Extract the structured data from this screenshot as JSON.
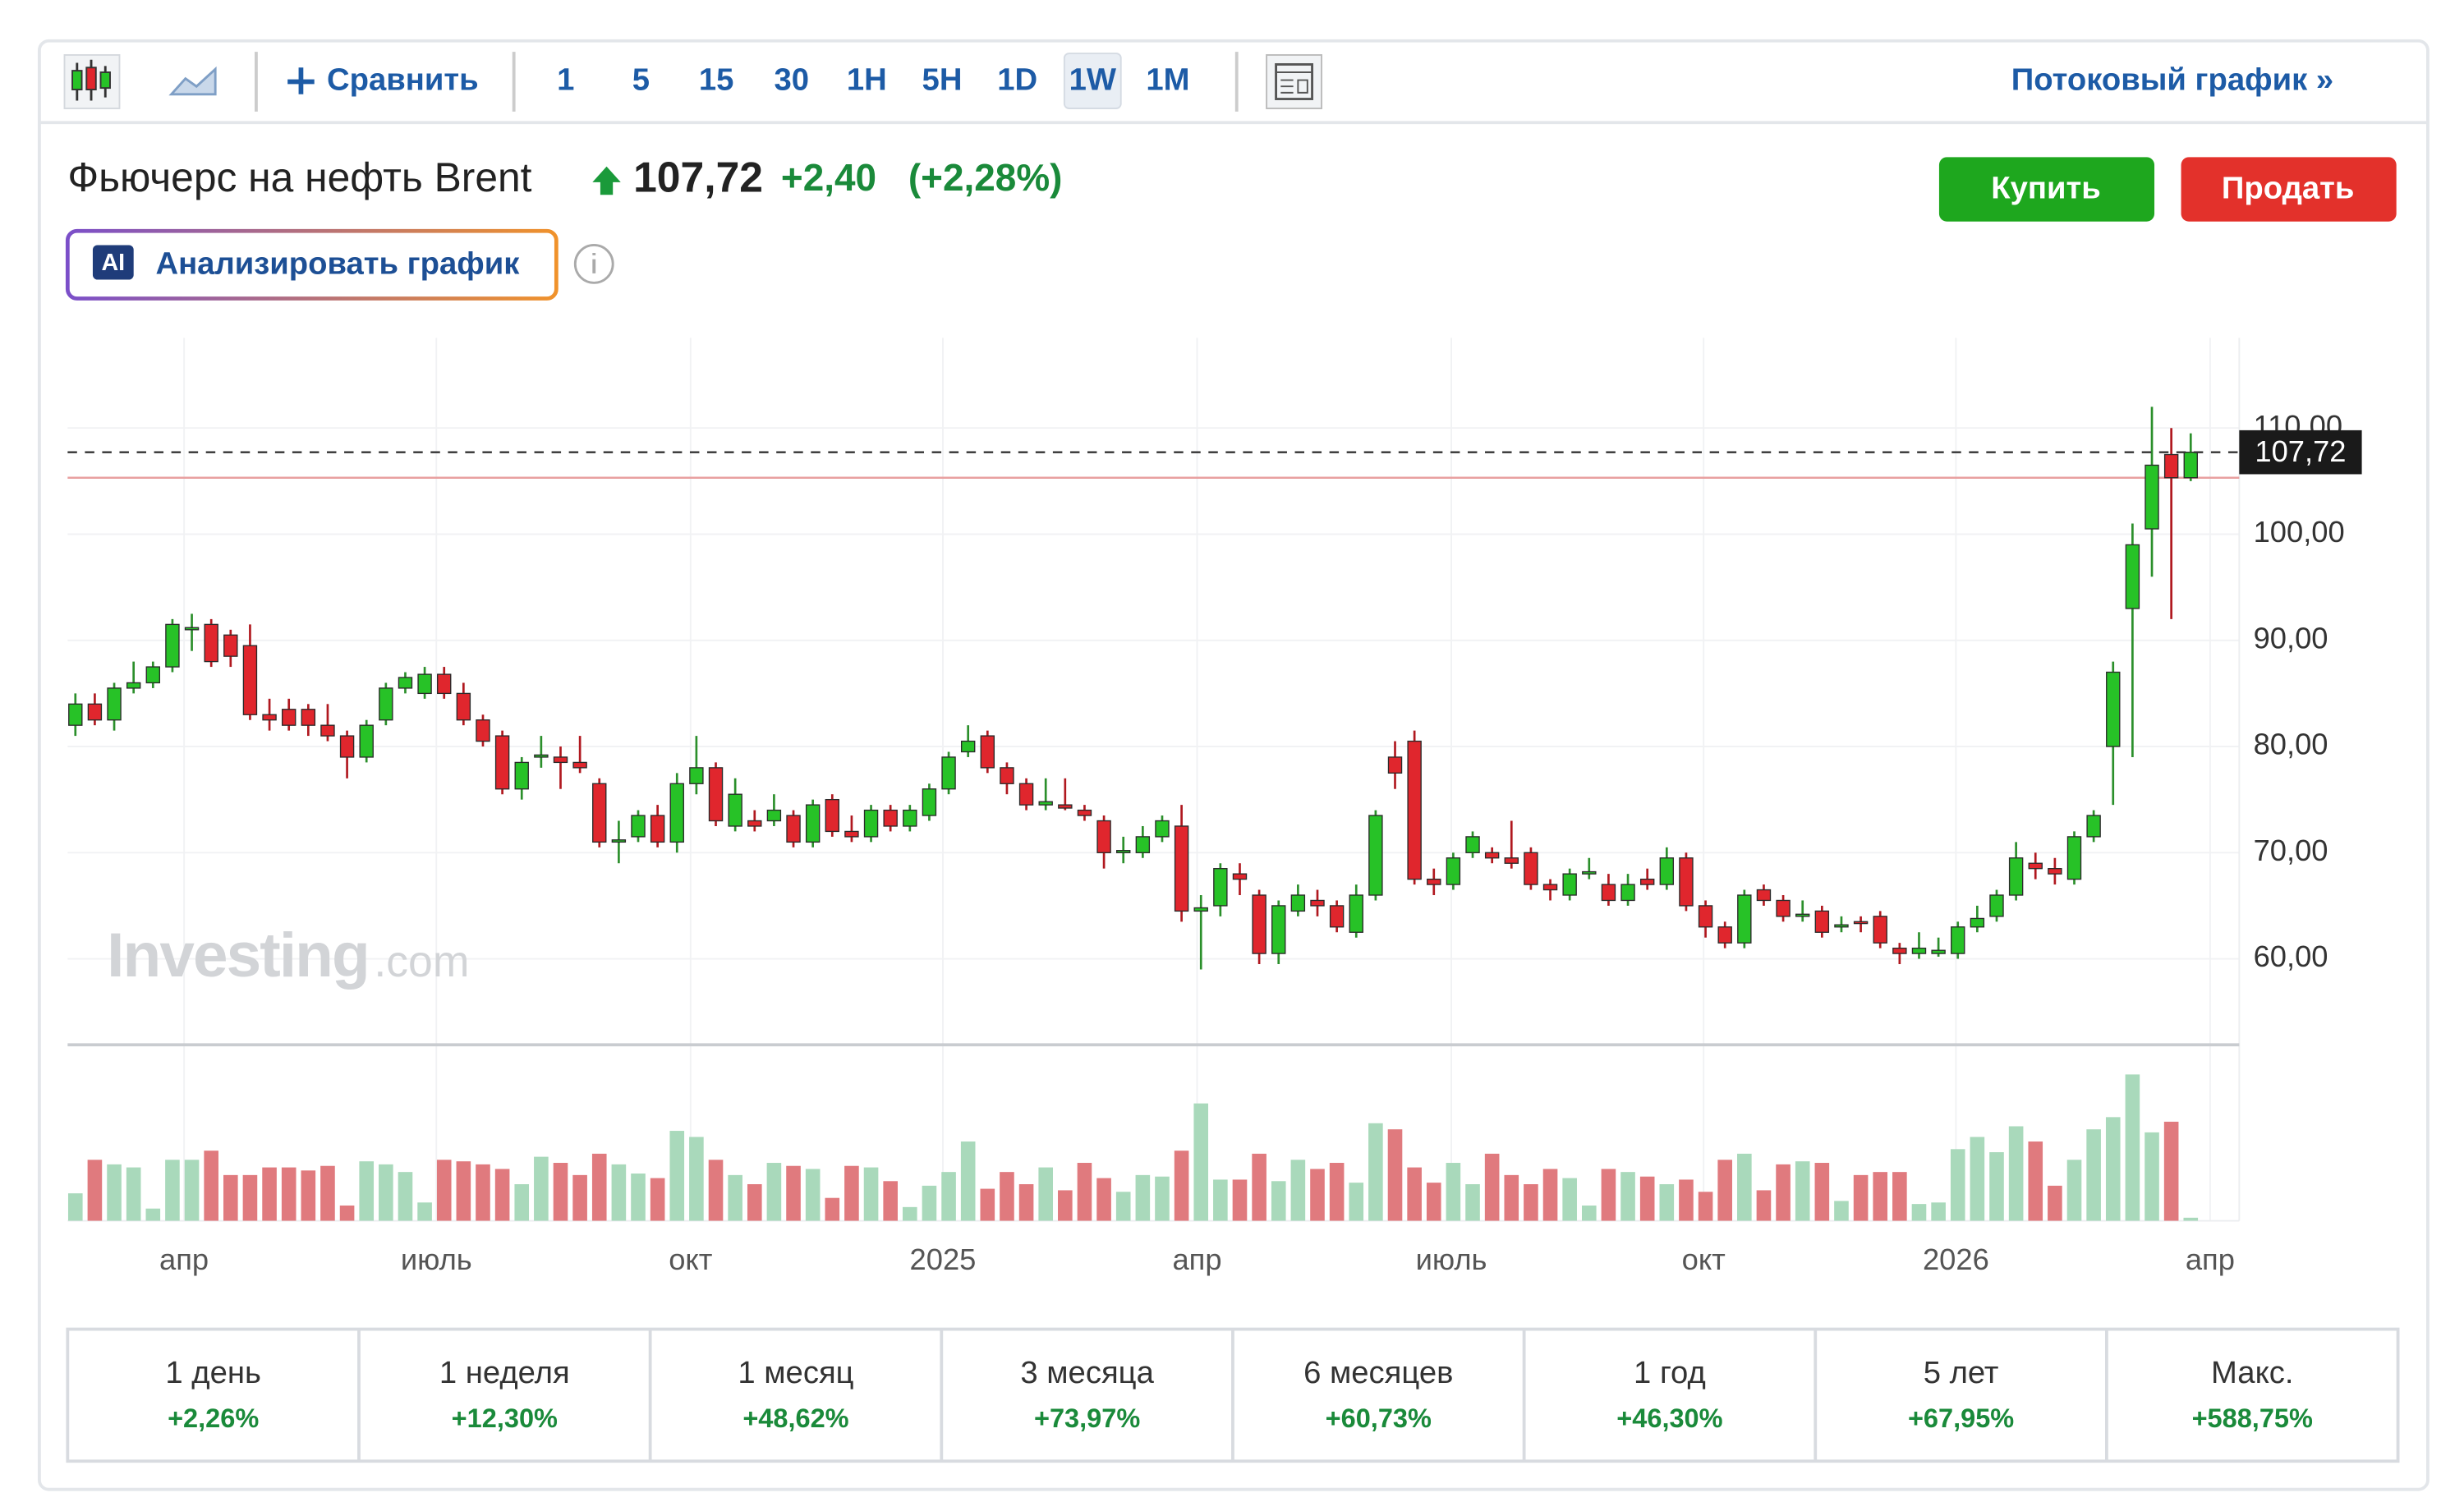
{
  "toolbar": {
    "compare": "Сравнить",
    "intervals": [
      "1",
      "5",
      "15",
      "30",
      "1H",
      "5H",
      "1D",
      "1W",
      "1M"
    ],
    "selected_interval": "1W",
    "stream": "Потоковый график »"
  },
  "header": {
    "title": "Фьючерс на нефть Brent",
    "price": "107,72",
    "change": "+2,40",
    "change_pct": "(+2,28%)",
    "buy": "Купить",
    "sell": "Продать",
    "analyze": "Анализировать график",
    "ai_badge": "AI"
  },
  "watermark": {
    "brand": "Investing",
    "domain": ".com"
  },
  "chart_data": {
    "type": "candlestick",
    "ylim": [
      51.9,
      118.5
    ],
    "yticks": [
      {
        "value": 60,
        "label": "60,00"
      },
      {
        "value": 70,
        "label": "70,00"
      },
      {
        "value": 80,
        "label": "80,00"
      },
      {
        "value": 90,
        "label": "90,00"
      },
      {
        "value": 100,
        "label": "100,00"
      },
      {
        "value": 110,
        "label": "110,00"
      }
    ],
    "xlim": [
      -0.4,
      111.5
    ],
    "xticks": [
      {
        "value": 5.6,
        "label": "апр"
      },
      {
        "value": 18.6,
        "label": "июль"
      },
      {
        "value": 31.7,
        "label": "окт"
      },
      {
        "value": 44.7,
        "label": "2025"
      },
      {
        "value": 57.8,
        "label": "апр"
      },
      {
        "value": 70.9,
        "label": "июль"
      },
      {
        "value": 83.9,
        "label": "окт"
      },
      {
        "value": 96.9,
        "label": "2026"
      },
      {
        "value": 110,
        "label": "апр"
      }
    ],
    "last": {
      "value": 107.72,
      "label": "107,72"
    },
    "prev_close": 105.32,
    "up_color": "#27c227",
    "down_color": "#e0262d",
    "volume_up_color": "#a9d9bb",
    "volume_down_color": "#e07a7e",
    "grid": true,
    "vlim": [
      0,
      100
    ],
    "candles": [
      [
        82,
        85,
        81,
        84
      ],
      [
        84,
        85,
        82,
        82.5
      ],
      [
        82.5,
        86,
        81.5,
        85.5
      ],
      [
        85.5,
        88,
        85,
        86
      ],
      [
        86,
        88,
        85.5,
        87.5
      ],
      [
        87.5,
        92,
        87,
        91.5
      ],
      [
        91,
        92.5,
        89,
        91.2
      ],
      [
        91.5,
        92,
        87.5,
        88
      ],
      [
        90.5,
        91,
        87.5,
        88.5
      ],
      [
        89.5,
        91.5,
        82.5,
        83
      ],
      [
        83,
        84.5,
        81.5,
        82.5
      ],
      [
        83.5,
        84.5,
        81.5,
        82
      ],
      [
        83.5,
        84,
        81,
        82
      ],
      [
        82,
        84,
        80.5,
        81
      ],
      [
        81,
        81.5,
        77,
        79
      ],
      [
        79,
        82.5,
        78.5,
        82
      ],
      [
        82.5,
        86,
        82,
        85.5
      ],
      [
        85.5,
        87,
        85,
        86.5
      ],
      [
        85,
        87.5,
        84.5,
        86.8
      ],
      [
        86.8,
        87.5,
        84.5,
        85
      ],
      [
        85,
        86,
        82,
        82.5
      ],
      [
        82.5,
        83,
        80,
        80.5
      ],
      [
        81,
        81.5,
        75.5,
        76
      ],
      [
        76,
        79,
        75,
        78.5
      ],
      [
        79,
        81,
        78,
        79.2
      ],
      [
        79,
        80,
        76,
        78.5
      ],
      [
        78.5,
        81,
        77.5,
        78
      ],
      [
        76.5,
        77,
        70.5,
        71
      ],
      [
        71,
        73,
        69,
        71.2
      ],
      [
        71.5,
        74,
        71,
        73.5
      ],
      [
        73.5,
        74.5,
        70.5,
        71
      ],
      [
        71,
        77.5,
        70,
        76.5
      ],
      [
        76.5,
        81,
        75.5,
        78
      ],
      [
        78,
        78.5,
        72.5,
        73
      ],
      [
        72.5,
        77,
        72,
        75.5
      ],
      [
        73,
        74,
        72,
        72.5
      ],
      [
        73,
        75.5,
        72.5,
        74
      ],
      [
        73.5,
        74,
        70.5,
        71
      ],
      [
        71,
        75,
        70.5,
        74.5
      ],
      [
        75,
        75.5,
        71.5,
        72
      ],
      [
        72,
        73.5,
        71,
        71.5
      ],
      [
        71.5,
        74.5,
        71,
        74
      ],
      [
        74,
        74.5,
        72,
        72.5
      ],
      [
        72.5,
        74.5,
        72,
        74
      ],
      [
        73.5,
        76.5,
        73,
        76
      ],
      [
        76,
        79.5,
        75.5,
        79
      ],
      [
        79.5,
        82,
        79,
        80.5
      ],
      [
        81,
        81.5,
        77.5,
        78
      ],
      [
        78,
        78.5,
        75.5,
        76.5
      ],
      [
        76.5,
        77,
        74,
        74.5
      ],
      [
        74.5,
        77,
        74,
        74.8
      ],
      [
        74.5,
        77,
        74,
        74.2
      ],
      [
        74,
        74.5,
        73,
        73.5
      ],
      [
        73,
        73.5,
        68.5,
        70
      ],
      [
        70,
        71.5,
        69,
        70.2
      ],
      [
        70,
        72.5,
        69.5,
        71.5
      ],
      [
        71.5,
        73.5,
        71,
        73
      ],
      [
        72.5,
        74.5,
        63.5,
        64.5
      ],
      [
        64.5,
        66,
        59,
        64.8
      ],
      [
        65,
        69,
        64,
        68.5
      ],
      [
        68,
        69,
        66,
        67.5
      ],
      [
        66,
        66.5,
        59.5,
        60.5
      ],
      [
        60.5,
        65.5,
        59.5,
        65
      ],
      [
        64.5,
        67,
        64,
        66
      ],
      [
        65.5,
        66.5,
        64,
        65
      ],
      [
        65,
        65.5,
        62.5,
        63
      ],
      [
        62.5,
        67,
        62,
        66
      ],
      [
        66,
        74,
        65.5,
        73.5
      ],
      [
        79,
        80.5,
        76,
        77.5
      ],
      [
        80.5,
        81.5,
        67,
        67.5
      ],
      [
        67.5,
        68.5,
        66,
        67
      ],
      [
        67,
        70,
        66.5,
        69.5
      ],
      [
        70,
        72,
        69.5,
        71.5
      ],
      [
        70,
        70.5,
        69,
        69.5
      ],
      [
        69.5,
        73,
        68.5,
        69
      ],
      [
        70,
        70.5,
        66.5,
        67
      ],
      [
        67,
        67.5,
        65.5,
        66.5
      ],
      [
        66,
        68.5,
        65.5,
        68
      ],
      [
        68,
        69.5,
        67.5,
        68.2
      ],
      [
        67,
        68,
        65,
        65.5
      ],
      [
        65.5,
        68,
        65,
        67
      ],
      [
        67.5,
        68.5,
        66.5,
        67
      ],
      [
        67,
        70.5,
        66.5,
        69.5
      ],
      [
        69.5,
        70,
        64.5,
        65
      ],
      [
        65,
        65.5,
        62,
        63
      ],
      [
        63,
        63.5,
        61,
        61.5
      ],
      [
        61.5,
        66.5,
        61,
        66
      ],
      [
        66.5,
        67,
        65,
        65.5
      ],
      [
        65.5,
        66,
        63.5,
        64
      ],
      [
        64,
        65.5,
        63.5,
        64.2
      ],
      [
        64.5,
        65,
        62,
        62.5
      ],
      [
        63,
        64,
        62.5,
        63.2
      ],
      [
        63.5,
        64,
        62.5,
        63.4
      ],
      [
        64,
        64.5,
        61,
        61.5
      ],
      [
        61,
        61.5,
        59.5,
        60.5
      ],
      [
        60.5,
        62.5,
        60,
        61
      ],
      [
        60.5,
        62,
        60.2,
        60.8
      ],
      [
        60.5,
        63.5,
        60,
        63
      ],
      [
        63,
        65,
        62.5,
        63.8
      ],
      [
        64,
        66.5,
        63.5,
        66
      ],
      [
        66,
        71,
        65.5,
        69.5
      ],
      [
        69,
        70,
        67.5,
        68.5
      ],
      [
        68.5,
        69.5,
        67,
        68
      ],
      [
        67.5,
        72,
        67,
        71.5
      ],
      [
        71.5,
        74,
        71,
        73.5
      ],
      [
        80,
        88,
        74.5,
        87
      ],
      [
        93,
        101,
        79,
        99
      ],
      [
        100.5,
        112,
        96,
        106.5
      ],
      [
        107.5,
        110,
        92,
        105.32
      ],
      [
        105.32,
        109.5,
        105,
        107.72
      ]
    ],
    "volume": [
      18,
      40,
      37,
      35,
      8,
      40,
      40,
      46,
      30,
      30,
      35,
      35,
      33,
      36,
      10,
      39,
      37,
      32,
      12,
      40,
      39,
      37,
      34,
      24,
      42,
      38,
      30,
      44,
      37,
      31,
      28,
      59,
      55,
      40,
      30,
      24,
      38,
      36,
      34,
      15,
      36,
      35,
      26,
      9,
      23,
      32,
      52,
      21,
      32,
      24,
      35,
      20,
      38,
      28,
      19,
      30,
      29,
      46,
      77,
      27,
      27,
      44,
      26,
      40,
      34,
      38,
      25,
      64,
      60,
      35,
      25,
      38,
      24,
      44,
      30,
      24,
      34,
      28,
      10,
      34,
      32,
      29,
      24,
      27,
      19,
      40,
      44,
      20,
      37,
      39,
      38,
      13,
      30,
      32,
      32,
      11,
      12,
      47,
      55,
      45,
      62,
      52,
      23,
      40,
      60,
      68,
      96,
      58,
      65,
      2
    ]
  },
  "performance": [
    {
      "period": "1 день",
      "change": "+2,26%"
    },
    {
      "period": "1 неделя",
      "change": "+12,30%"
    },
    {
      "period": "1 месяц",
      "change": "+48,62%"
    },
    {
      "period": "3 месяца",
      "change": "+73,97%"
    },
    {
      "period": "6 месяцев",
      "change": "+60,73%"
    },
    {
      "period": "1 год",
      "change": "+46,30%"
    },
    {
      "period": "5 лет",
      "change": "+67,95%"
    },
    {
      "period": "Макс.",
      "change": "+588,75%"
    }
  ]
}
